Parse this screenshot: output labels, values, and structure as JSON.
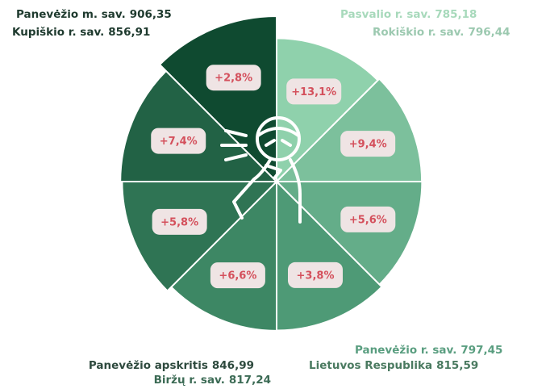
{
  "chart_data": {
    "type": "polar-area",
    "categories": [
      "Pasvalio r. sav.",
      "Rokiškio r. sav.",
      "Panevėžio r. sav.",
      "Lietuvos Respublika",
      "Biržų r. sav.",
      "Panevėžio apskritis",
      "Kupiškio r. sav.",
      "Panevėžio m. sav."
    ],
    "values": [
      785.18,
      796.44,
      797.45,
      815.59,
      817.24,
      846.99,
      856.91,
      906.35
    ],
    "value_labels": [
      "785,18",
      "796,44",
      "797,45",
      "815,59",
      "817,24",
      "846,99",
      "856,91",
      "906,35"
    ],
    "changes": [
      13.1,
      9.4,
      5.6,
      3.8,
      6.6,
      5.8,
      7.4,
      2.8
    ],
    "change_labels": [
      "+13,1%",
      "+9,4%",
      "+5,6%",
      "+3,8%",
      "+6,6%",
      "+5,8%",
      "+7,4%",
      "+2,8%"
    ],
    "colors": [
      "#8fd1ac",
      "#7cc09c",
      "#64ad89",
      "#4e9a76",
      "#3d8764",
      "#2f7454",
      "#226245",
      "#0f4a30"
    ]
  }
}
